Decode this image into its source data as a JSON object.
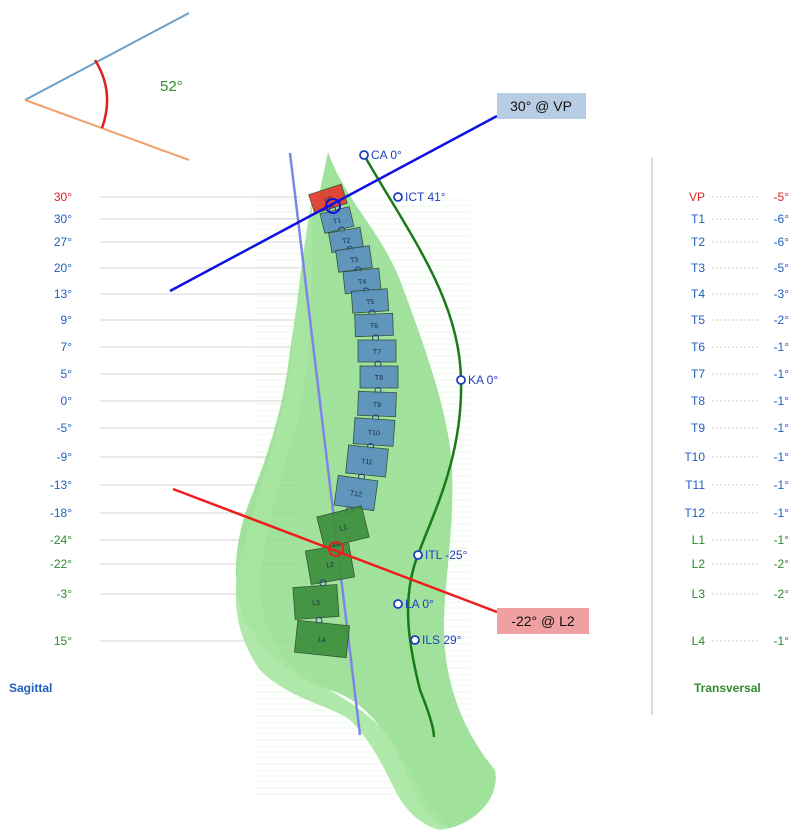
{
  "colors": {
    "blue": "#1f5fbf",
    "green": "#2e8b2e",
    "red": "#e0201e",
    "cyan_line": "#6a9fca",
    "orange_line": "#f2a06c",
    "plumb_line": "#2a9a2a",
    "blue_line": "#1010e0",
    "red_line": "#ee1c1c",
    "thoracic_fill": "#5b8fbf",
    "lumbar_fill": "#3d8f3d",
    "vp_fill": "#e53a2e",
    "body_fill": "#8fdc8a",
    "grid": "#d4d4d4",
    "callout_blue_bg": "#b8cde3",
    "callout_red_bg": "#f0a0a0"
  },
  "angle_indicator": {
    "label": "52°"
  },
  "callouts": {
    "top": "30° @ VP",
    "bottom": "-22° @ L2"
  },
  "landmarks": [
    {
      "id": "CA",
      "label": "CA 0°"
    },
    {
      "id": "ICT",
      "label": "ICT 41°"
    },
    {
      "id": "KA",
      "label": "KA 0°"
    },
    {
      "id": "ITL",
      "label": "ITL -25°"
    },
    {
      "id": "LA",
      "label": "LA 0°"
    },
    {
      "id": "ILS",
      "label": "ILS 29°"
    }
  ],
  "sagittal": {
    "title": "Sagittal",
    "rows": [
      {
        "value": "30°",
        "color": "red"
      },
      {
        "value": "30°",
        "color": "blue"
      },
      {
        "value": "27°",
        "color": "blue"
      },
      {
        "value": "20°",
        "color": "blue"
      },
      {
        "value": "13°",
        "color": "blue"
      },
      {
        "value": "9°",
        "color": "blue"
      },
      {
        "value": "7°",
        "color": "blue"
      },
      {
        "value": "5°",
        "color": "blue"
      },
      {
        "value": "0°",
        "color": "blue"
      },
      {
        "value": "-5°",
        "color": "blue"
      },
      {
        "value": "-9°",
        "color": "blue"
      },
      {
        "value": "-13°",
        "color": "blue"
      },
      {
        "value": "-18°",
        "color": "blue"
      },
      {
        "value": "-24°",
        "color": "green"
      },
      {
        "value": "-22°",
        "color": "green"
      },
      {
        "value": "-3°",
        "color": "green"
      },
      {
        "value": "15°",
        "color": "green"
      }
    ]
  },
  "transversal": {
    "title": "Transversal",
    "rows": [
      {
        "level": "VP",
        "value": "-5°",
        "color": "red"
      },
      {
        "level": "T1",
        "value": "-6°",
        "color": "blue"
      },
      {
        "level": "T2",
        "value": "-6°",
        "color": "blue"
      },
      {
        "level": "T3",
        "value": "-5°",
        "color": "blue"
      },
      {
        "level": "T4",
        "value": "-3°",
        "color": "blue"
      },
      {
        "level": "T5",
        "value": "-2°",
        "color": "blue"
      },
      {
        "level": "T6",
        "value": "-1°",
        "color": "blue"
      },
      {
        "level": "T7",
        "value": "-1°",
        "color": "blue"
      },
      {
        "level": "T8",
        "value": "-1°",
        "color": "blue"
      },
      {
        "level": "T9",
        "value": "-1°",
        "color": "blue"
      },
      {
        "level": "T10",
        "value": "-1°",
        "color": "blue"
      },
      {
        "level": "T11",
        "value": "-1°",
        "color": "blue"
      },
      {
        "level": "T12",
        "value": "-1°",
        "color": "blue"
      },
      {
        "level": "L1",
        "value": "-1°",
        "color": "green"
      },
      {
        "level": "L2",
        "value": "-2°",
        "color": "green"
      },
      {
        "level": "L3",
        "value": "-2°",
        "color": "green"
      },
      {
        "level": "L4",
        "value": "-1°",
        "color": "green"
      }
    ]
  },
  "vertebrae": [
    {
      "label": "VP",
      "region": "vp"
    },
    {
      "label": "T1",
      "region": "thoracic"
    },
    {
      "label": "T2",
      "region": "thoracic"
    },
    {
      "label": "T3",
      "region": "thoracic"
    },
    {
      "label": "T4",
      "region": "thoracic"
    },
    {
      "label": "T5",
      "region": "thoracic"
    },
    {
      "label": "T6",
      "region": "thoracic"
    },
    {
      "label": "T7",
      "region": "thoracic"
    },
    {
      "label": "T8",
      "region": "thoracic"
    },
    {
      "label": "T9",
      "region": "thoracic"
    },
    {
      "label": "T10",
      "region": "thoracic"
    },
    {
      "label": "T11",
      "region": "thoracic"
    },
    {
      "label": "T12",
      "region": "thoracic"
    },
    {
      "label": "L1",
      "region": "lumbar"
    },
    {
      "label": "L2",
      "region": "lumbar"
    },
    {
      "label": "L3",
      "region": "lumbar"
    },
    {
      "label": "L4",
      "region": "lumbar"
    }
  ]
}
